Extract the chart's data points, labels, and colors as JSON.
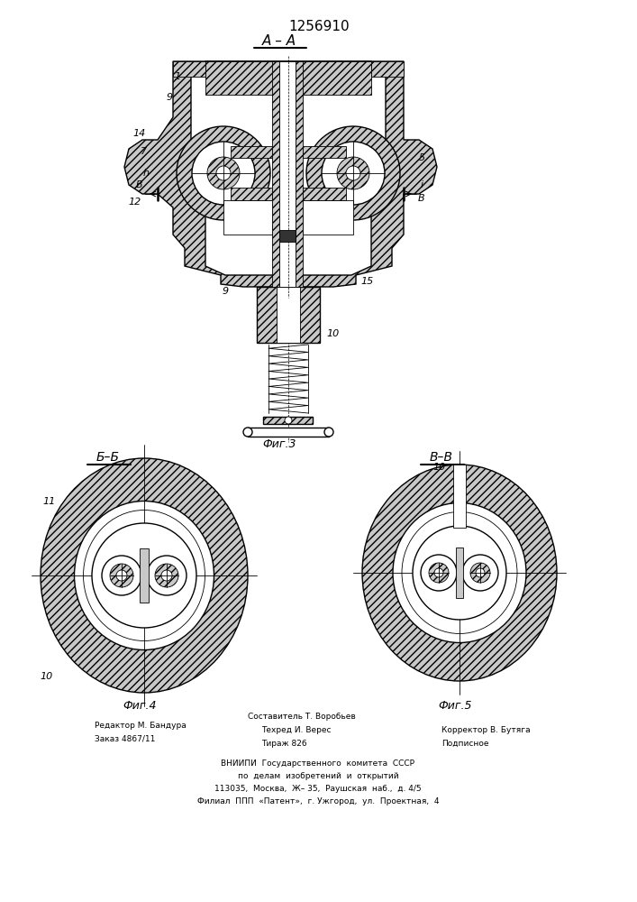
{
  "patent_number": "1256910",
  "title_aa": "A – A",
  "fig3_label": "Фиг.3",
  "fig4_label": "Фиг.4",
  "fig5_label": "Фиг.5",
  "section_bb": "Б–Б",
  "section_vv": "В–В",
  "footer_line1_left": "Редактор М. Бандура",
  "footer_line2_left": "Заказ 4867/11",
  "footer_center_top": "Составитель Т. Воробьев",
  "footer_center1": "Техред И. Верес",
  "footer_center2": "Тираж 826",
  "footer_right1": "Корректор В. Бутяга",
  "footer_right2": "Подписное",
  "footer_vniip1": "ВНИИПИ  Государственного  комитета  СССР",
  "footer_vniip2": "по  делам  изобретений  и  открытий",
  "footer_vniip3": "113035,  Москва,  Ж– 35,  Раушская  наб.,  д. 4/5",
  "footer_vniip4": "Филиал  ППП  «Патент»,  г. Ужгород,  ул.  Проектная,  4",
  "bg_color": "#ffffff",
  "line_color": "#000000"
}
